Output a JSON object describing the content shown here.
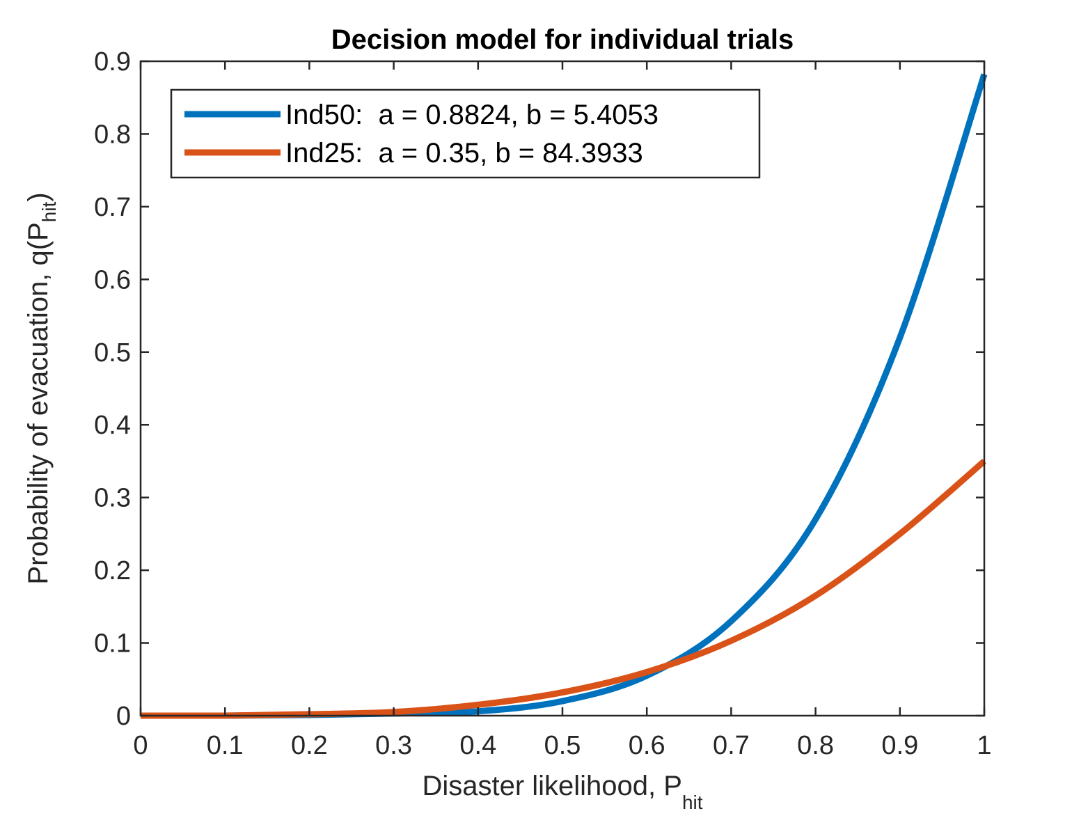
{
  "chart_data": {
    "type": "line",
    "title": "Decision model for individual trials",
    "xlabel": {
      "main": "Disaster likelihood, P",
      "sub": "hit",
      "tail": ""
    },
    "ylabel": {
      "main": "Probability of evacuation, q(P",
      "sub": "hit",
      "tail": ")"
    },
    "xlim": [
      0,
      1
    ],
    "ylim": [
      0,
      0.9
    ],
    "xticks": [
      "0",
      "0.1",
      "0.2",
      "0.3",
      "0.4",
      "0.5",
      "0.6",
      "0.7",
      "0.8",
      "0.9",
      "1"
    ],
    "yticks": [
      "0",
      "0.1",
      "0.2",
      "0.3",
      "0.4",
      "0.5",
      "0.6",
      "0.7",
      "0.8",
      "0.9"
    ],
    "grid": false,
    "legend_position": "top-left",
    "x": [
      0,
      0.1,
      0.2,
      0.3,
      0.4,
      0.5,
      0.6,
      0.7,
      0.8,
      0.9,
      1.0
    ],
    "series": [
      {
        "name": "Ind50:  a = 0.8824, b = 5.4053",
        "color": "#0072BD",
        "values": [
          0,
          0.0,
          0.001,
          0.003,
          0.006,
          0.02,
          0.055,
          0.13,
          0.27,
          0.52,
          0.882
        ]
      },
      {
        "name": "Ind25:  a = 0.35, b = 84.3933",
        "color": "#D95319",
        "values": [
          0,
          0.0,
          0.002,
          0.005,
          0.015,
          0.032,
          0.06,
          0.103,
          0.165,
          0.25,
          0.35
        ]
      }
    ]
  }
}
